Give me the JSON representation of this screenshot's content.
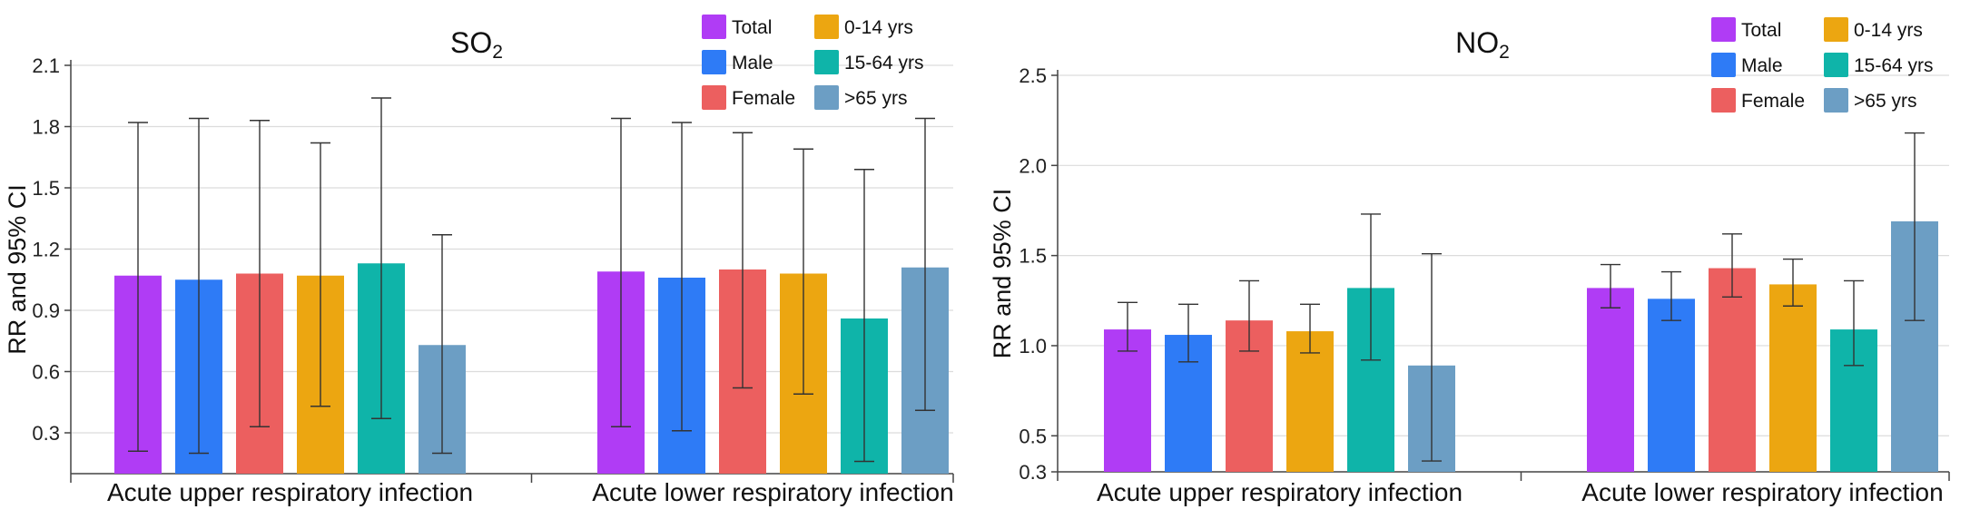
{
  "chart_data": [
    {
      "type": "bar",
      "title": "SO2",
      "title_main": "SO",
      "title_sub": "2",
      "ylabel": "RR and 95% CI",
      "xlabel": "",
      "ylim": [
        0.1,
        2.1
      ],
      "yticks": [
        "0.3",
        "0.6",
        "0.9",
        "1.2",
        "1.5",
        "1.8",
        "2.1"
      ],
      "legend_position": "top-right",
      "categories": [
        "Acute upper respiratory infection",
        "Acute lower respiratory infection"
      ],
      "series": [
        {
          "name": "Total",
          "color": "#b03cf5",
          "values": [
            1.07,
            1.09
          ],
          "lower": [
            0.21,
            0.33
          ],
          "upper": [
            1.82,
            1.84
          ]
        },
        {
          "name": "Male",
          "color": "#2e7bf6",
          "values": [
            1.05,
            1.06
          ],
          "lower": [
            0.2,
            0.31
          ],
          "upper": [
            1.84,
            1.82
          ]
        },
        {
          "name": "Female",
          "color": "#ec5f5f",
          "values": [
            1.08,
            1.1
          ],
          "lower": [
            0.33,
            0.52
          ],
          "upper": [
            1.83,
            1.77
          ]
        },
        {
          "name": "0-14 yrs",
          "color": "#eca611",
          "values": [
            1.07,
            1.08
          ],
          "lower": [
            0.43,
            0.49
          ],
          "upper": [
            1.72,
            1.69
          ]
        },
        {
          "name": "15-64 yrs",
          "color": "#0fb4a9",
          "values": [
            1.13,
            0.86
          ],
          "lower": [
            0.37,
            0.16
          ],
          "upper": [
            1.94,
            1.59
          ]
        },
        {
          "name": ">65 yrs",
          "color": "#6c9ec4",
          "values": [
            0.73,
            1.11
          ],
          "lower": [
            0.2,
            0.41
          ],
          "upper": [
            1.27,
            1.84
          ]
        }
      ]
    },
    {
      "type": "bar",
      "title": "NO2",
      "title_main": "NO",
      "title_sub": "2",
      "ylabel": "RR and 95% CI",
      "xlabel": "",
      "ylim": [
        0.3,
        2.5
      ],
      "yticks": [
        "0.3",
        "0.5",
        "1.0",
        "1.5",
        "2.0",
        "2.5"
      ],
      "legend_position": "top-right",
      "categories": [
        "Acute upper respiratory infection",
        "Acute lower respiratory infection"
      ],
      "series": [
        {
          "name": "Total",
          "color": "#b03cf5",
          "values": [
            1.09,
            1.32
          ],
          "lower": [
            0.97,
            1.21
          ],
          "upper": [
            1.24,
            1.45
          ]
        },
        {
          "name": "Male",
          "color": "#2e7bf6",
          "values": [
            1.06,
            1.26
          ],
          "lower": [
            0.91,
            1.14
          ],
          "upper": [
            1.23,
            1.41
          ]
        },
        {
          "name": "Female",
          "color": "#ec5f5f",
          "values": [
            1.14,
            1.43
          ],
          "lower": [
            0.97,
            1.27
          ],
          "upper": [
            1.36,
            1.62
          ]
        },
        {
          "name": "0-14 yrs",
          "color": "#eca611",
          "values": [
            1.08,
            1.34
          ],
          "lower": [
            0.96,
            1.22
          ],
          "upper": [
            1.23,
            1.48
          ]
        },
        {
          "name": "15-64 yrs",
          "color": "#0fb4a9",
          "values": [
            1.32,
            1.09
          ],
          "lower": [
            0.92,
            0.89
          ],
          "upper": [
            1.73,
            1.36
          ]
        },
        {
          "name": ">65 yrs",
          "color": "#6c9ec4",
          "values": [
            0.89,
            1.69
          ],
          "lower": [
            0.36,
            1.14
          ],
          "upper": [
            1.51,
            2.18
          ]
        }
      ]
    }
  ]
}
